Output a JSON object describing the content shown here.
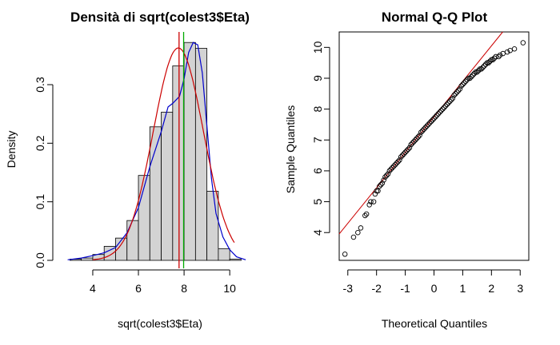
{
  "chart_data": [
    {
      "type": "bar",
      "title": "Densità di sqrt(colest3$Eta)",
      "xlabel": "sqrt(colest3$Eta)",
      "ylabel": "Density",
      "xlim": [
        2.6,
        10.8
      ],
      "ylim": [
        0,
        0.39
      ],
      "x_ticks": [
        "4",
        "6",
        "8",
        "10"
      ],
      "y_ticks": [
        "0.0",
        "0.1",
        "0.2",
        "0.3"
      ],
      "bins": [
        {
          "from": 3.0,
          "to": 3.5,
          "density": 0.002
        },
        {
          "from": 3.5,
          "to": 4.0,
          "density": 0.004
        },
        {
          "from": 4.0,
          "to": 4.5,
          "density": 0.01
        },
        {
          "from": 4.5,
          "to": 5.0,
          "density": 0.024
        },
        {
          "from": 5.0,
          "to": 5.5,
          "density": 0.038
        },
        {
          "from": 5.5,
          "to": 6.0,
          "density": 0.068
        },
        {
          "from": 6.0,
          "to": 6.5,
          "density": 0.145
        },
        {
          "from": 6.5,
          "to": 7.0,
          "density": 0.228
        },
        {
          "from": 7.0,
          "to": 7.5,
          "density": 0.253
        },
        {
          "from": 7.5,
          "to": 8.0,
          "density": 0.332
        },
        {
          "from": 8.0,
          "to": 8.5,
          "density": 0.372
        },
        {
          "from": 8.5,
          "to": 9.0,
          "density": 0.362
        },
        {
          "from": 9.0,
          "to": 9.5,
          "density": 0.118
        },
        {
          "from": 9.5,
          "to": 10.0,
          "density": 0.02
        },
        {
          "from": 10.0,
          "to": 10.5,
          "density": 0.002
        }
      ],
      "kernel_density": {
        "color": "#0000cc",
        "x": [
          2.9,
          3.5,
          4.0,
          4.5,
          5.0,
          5.5,
          6.0,
          6.5,
          7.0,
          7.3,
          7.5,
          7.8,
          8.0,
          8.2,
          8.4,
          8.6,
          8.8,
          9.0,
          9.2,
          9.4,
          9.7,
          10.0,
          10.3,
          10.7
        ],
        "y": [
          0.001,
          0.004,
          0.008,
          0.013,
          0.022,
          0.047,
          0.09,
          0.16,
          0.22,
          0.262,
          0.268,
          0.28,
          0.31,
          0.355,
          0.372,
          0.368,
          0.32,
          0.23,
          0.14,
          0.08,
          0.04,
          0.018,
          0.006,
          0.001
        ]
      },
      "normal_curve": {
        "color": "#cc0000",
        "mean": 7.75,
        "sd": 1.1
      },
      "vlines": [
        {
          "x": 7.78,
          "color": "#cc0000"
        },
        {
          "x": 7.98,
          "color": "#00aa00"
        }
      ],
      "bar_fill": "#d3d3d3"
    },
    {
      "type": "scatter",
      "title": "Normal Q-Q Plot",
      "xlabel": "Theoretical Quantiles",
      "ylabel": "Sample Quantiles",
      "xlim": [
        -3.3,
        3.3
      ],
      "ylim": [
        3.1,
        10.5
      ],
      "x_ticks": [
        "-3",
        "-2",
        "-1",
        "0",
        "1",
        "2",
        "3"
      ],
      "y_ticks": [
        "4",
        "5",
        "6",
        "7",
        "8",
        "9",
        "10"
      ],
      "qq_line": {
        "color": "#cc0000",
        "intercept": 7.75,
        "slope": 1.15
      },
      "x": [
        -3.1,
        -2.8,
        -2.65,
        -2.55,
        -2.4,
        -2.35,
        -2.25,
        -2.2,
        -2.1,
        -2.05,
        -2.0,
        -1.95,
        -1.9,
        -1.85,
        -1.8,
        -1.75,
        -1.7,
        -1.65,
        -1.6,
        -1.55,
        -1.5,
        -1.45,
        -1.4,
        -1.35,
        -1.3,
        -1.25,
        -1.2,
        -1.15,
        -1.1,
        -1.05,
        -1.0,
        -0.95,
        -0.9,
        -0.85,
        -0.8,
        -0.75,
        -0.7,
        -0.65,
        -0.6,
        -0.55,
        -0.5,
        -0.45,
        -0.4,
        -0.35,
        -0.3,
        -0.25,
        -0.2,
        -0.15,
        -0.1,
        -0.05,
        0.0,
        0.05,
        0.1,
        0.15,
        0.2,
        0.25,
        0.3,
        0.35,
        0.4,
        0.45,
        0.5,
        0.55,
        0.6,
        0.65,
        0.7,
        0.75,
        0.8,
        0.85,
        0.9,
        0.95,
        1.0,
        1.05,
        1.1,
        1.15,
        1.2,
        1.25,
        1.3,
        1.35,
        1.4,
        1.45,
        1.5,
        1.55,
        1.6,
        1.65,
        1.7,
        1.75,
        1.8,
        1.85,
        1.9,
        1.95,
        2.0,
        2.05,
        2.1,
        2.15,
        2.25,
        2.3,
        2.4,
        2.55,
        2.65,
        2.8,
        3.1
      ],
      "y": [
        3.3,
        3.85,
        4.0,
        4.15,
        4.55,
        4.6,
        4.9,
        5.0,
        5.0,
        5.25,
        5.35,
        5.35,
        5.5,
        5.55,
        5.6,
        5.7,
        5.8,
        5.85,
        5.9,
        6.0,
        6.05,
        6.1,
        6.15,
        6.2,
        6.25,
        6.3,
        6.35,
        6.45,
        6.5,
        6.55,
        6.6,
        6.65,
        6.7,
        6.75,
        6.85,
        6.9,
        6.95,
        7.0,
        7.05,
        7.1,
        7.15,
        7.25,
        7.3,
        7.35,
        7.4,
        7.45,
        7.5,
        7.55,
        7.6,
        7.65,
        7.7,
        7.75,
        7.8,
        7.85,
        7.9,
        7.95,
        8.0,
        8.05,
        8.1,
        8.15,
        8.2,
        8.25,
        8.3,
        8.35,
        8.45,
        8.5,
        8.55,
        8.6,
        8.65,
        8.75,
        8.8,
        8.85,
        8.9,
        8.95,
        9.0,
        9.0,
        9.05,
        9.1,
        9.15,
        9.2,
        9.2,
        9.25,
        9.3,
        9.3,
        9.35,
        9.4,
        9.45,
        9.5,
        9.5,
        9.55,
        9.6,
        9.6,
        9.65,
        9.7,
        9.7,
        9.75,
        9.8,
        9.85,
        9.9,
        9.95,
        10.15
      ]
    }
  ]
}
